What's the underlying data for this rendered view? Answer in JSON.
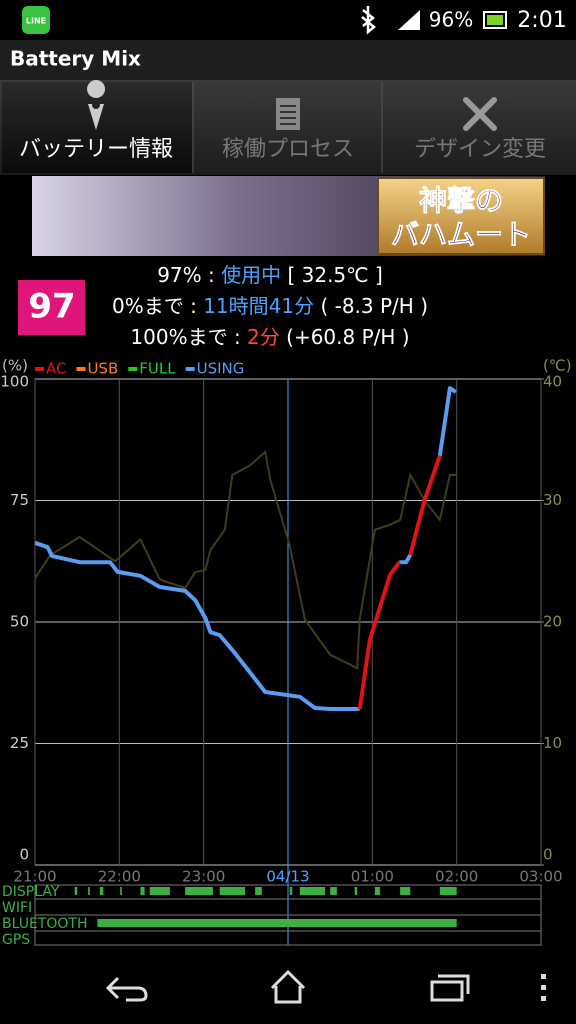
{
  "status_bar": {
    "app_icon": "LINE",
    "battery": "96%",
    "time": "2:01"
  },
  "app_bar": {
    "title": "Battery Mix"
  },
  "tabs": [
    "バッテリー情報",
    "稼働プロセス",
    "デザイン変更"
  ],
  "ad": {
    "lines": [
      "神撃の",
      "バハムート"
    ]
  },
  "battery": {
    "level": "97",
    "lines": [
      {
        "label": "97% : ",
        "value": "使用中",
        "detail": " [ 32.5℃ ]"
      },
      {
        "label": "0%まで : ",
        "value": "11時間41分",
        "detail": " ( -8.3 P/H )"
      },
      {
        "label": "100%まで : ",
        "value": "2分",
        "detail": " (+60.8 P/H )"
      }
    ]
  },
  "chart_data": {
    "type": "line",
    "y_label": "(%)",
    "y2_label": "(℃)",
    "grid": true,
    "xlim": [
      21,
      27
    ],
    "xticks": [
      {
        "value": 21,
        "label": "21:00"
      },
      {
        "value": 22,
        "label": "22:00"
      },
      {
        "value": 23,
        "label": "23:00"
      },
      {
        "value": 24,
        "label": "04/13"
      },
      {
        "value": 25,
        "label": "01:00"
      },
      {
        "value": 26,
        "label": "02:00"
      },
      {
        "value": 27,
        "label": "03:00"
      }
    ],
    "ylim": [
      0,
      100
    ],
    "yticks": [
      0,
      25,
      50,
      75,
      100
    ],
    "y2lim": [
      0,
      40
    ],
    "y2ticks": [
      0,
      10,
      20,
      30,
      40
    ],
    "x": [
      21.0,
      21.15,
      21.2,
      21.53,
      21.89,
      21.98,
      22.25,
      22.48,
      22.78,
      22.9,
      23.02,
      23.08,
      23.19,
      23.37,
      23.73,
      24.14,
      24.32,
      24.5,
      24.85,
      24.97,
      25.21,
      25.32,
      25.4,
      25.45,
      25.62,
      25.8,
      25.92,
      25.99
    ],
    "series": [
      {
        "name": "AC",
        "color": "#e01414",
        "values": [
          null,
          null,
          null,
          null,
          null,
          null,
          null,
          null,
          null,
          null,
          null,
          null,
          null,
          null,
          null,
          null,
          null,
          null,
          32.1,
          46.3,
          59.7,
          62.3,
          null,
          63.8,
          75.1,
          84.2,
          null,
          null
        ]
      },
      {
        "name": "USB",
        "color": "#ff7a1a",
        "values": [
          null,
          null,
          null,
          null,
          null,
          null,
          null,
          null,
          null,
          null,
          null,
          null,
          null,
          null,
          null,
          null,
          null,
          null,
          null,
          null,
          null,
          null,
          null,
          null,
          null,
          null,
          null,
          null
        ]
      },
      {
        "name": "FULL",
        "color": "#22cc22",
        "values": [
          null,
          null,
          null,
          null,
          null,
          null,
          null,
          null,
          null,
          null,
          null,
          null,
          null,
          null,
          null,
          null,
          null,
          null,
          null,
          null,
          null,
          null,
          null,
          null,
          null,
          null,
          null,
          null
        ]
      },
      {
        "name": "USING",
        "color": "#5b9bf0",
        "values": [
          66.3,
          65.4,
          63.6,
          62.3,
          62.3,
          60.3,
          59.5,
          57.2,
          56.4,
          54.5,
          50.8,
          47.9,
          47.3,
          43.6,
          35.6,
          34.6,
          32.3,
          32.1,
          32.1,
          null,
          null,
          62.3,
          62.3,
          63.8,
          null,
          84.2,
          98.1,
          97.3
        ]
      }
    ],
    "temperature": {
      "axis": "y2",
      "color": "#3e3d1e",
      "x": [
        21.0,
        21.18,
        21.53,
        21.95,
        22.25,
        22.48,
        22.78,
        22.9,
        23.02,
        23.08,
        23.25,
        23.34,
        23.55,
        23.73,
        23.79,
        24.02,
        24.2,
        24.5,
        24.82,
        24.85,
        25.03,
        25.21,
        25.33,
        25.45,
        25.62,
        25.8,
        25.92,
        26.0
      ],
      "values": [
        23.6,
        25.5,
        27.0,
        25.0,
        26.8,
        23.5,
        22.8,
        24.1,
        24.3,
        25.9,
        27.6,
        32.1,
        32.9,
        34.0,
        31.7,
        26.3,
        20.2,
        17.3,
        16.2,
        20.2,
        27.6,
        28.0,
        28.4,
        32.1,
        30.0,
        28.4,
        32.1,
        32.1
      ]
    }
  },
  "activity": {
    "color": "#3cb043",
    "rows": [
      {
        "label": "DISPLAY",
        "intervals": [
          [
            21.47,
            21.5
          ],
          [
            21.63,
            21.65
          ],
          [
            21.77,
            21.81
          ],
          [
            22.01,
            22.03
          ],
          [
            22.25,
            22.3
          ],
          [
            22.36,
            22.6
          ],
          [
            22.78,
            23.11
          ],
          [
            23.19,
            23.49
          ],
          [
            23.61,
            23.69
          ],
          [
            24.02,
            24.05
          ],
          [
            24.14,
            24.44
          ],
          [
            24.5,
            24.58
          ],
          [
            24.79,
            24.82
          ],
          [
            25.03,
            25.09
          ],
          [
            25.33,
            25.45
          ],
          [
            25.8,
            26.0
          ]
        ]
      },
      {
        "label": "WIFI",
        "intervals": []
      },
      {
        "label": "BLUETOOTH",
        "intervals": [
          [
            21.74,
            26.0
          ]
        ]
      },
      {
        "label": "GPS",
        "intervals": []
      }
    ]
  }
}
